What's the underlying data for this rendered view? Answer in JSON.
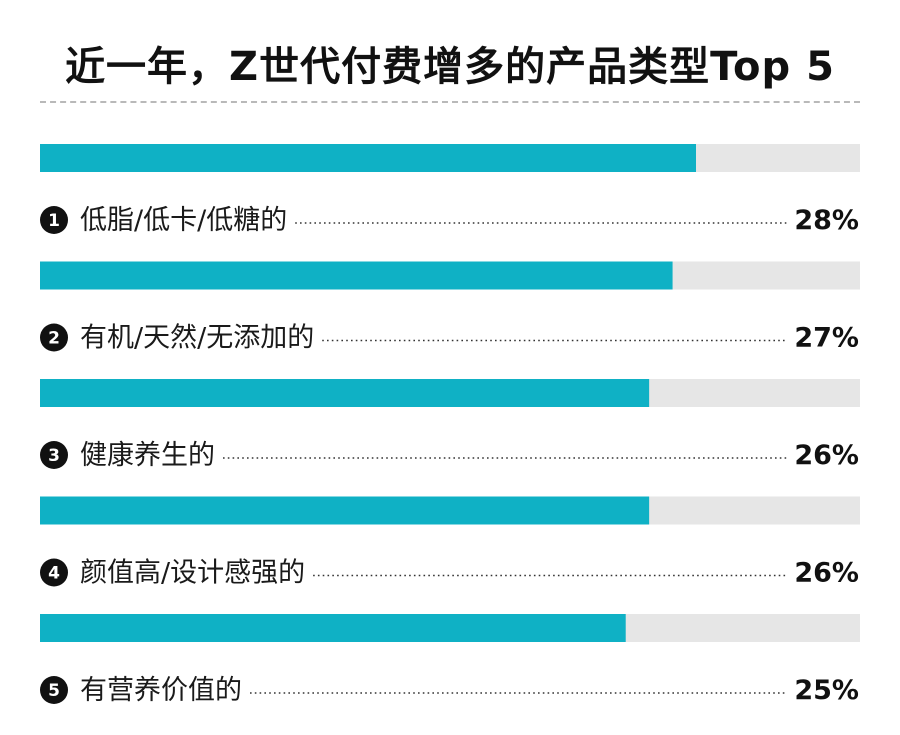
{
  "chart_data": {
    "type": "bar",
    "title": "近一年，Z世代付费增多的产品类型Top 5",
    "orientation": "horizontal",
    "categories": [
      "低脂/低卡/低糖的",
      "有机/天然/无添加的",
      "健康养生的",
      "颜值高/设计感强的",
      "有营养价值的"
    ],
    "ranks": [
      "1",
      "2",
      "3",
      "4",
      "5"
    ],
    "values": [
      28,
      27,
      26,
      26,
      25
    ],
    "value_labels": [
      "28%",
      "27%",
      "26%",
      "26%",
      "25%"
    ],
    "xlim": [
      0,
      35
    ],
    "grid": false,
    "colors": {
      "bar": "#0fb1c5",
      "track": "#e6e6e6",
      "badge": "#111111"
    }
  }
}
